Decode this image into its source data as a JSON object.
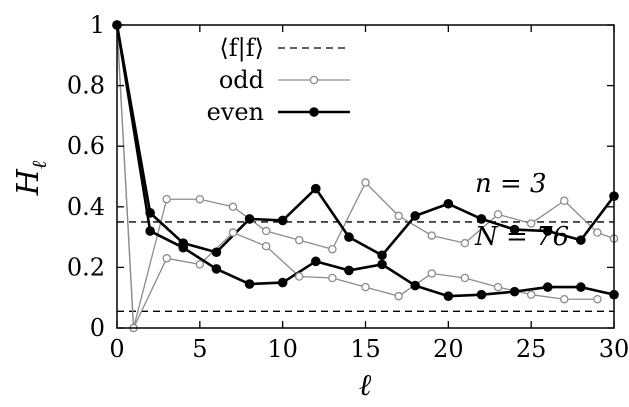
{
  "chart_data": {
    "type": "line",
    "xlabel": "ℓ",
    "ylabel": "H",
    "ylabel_sub": "ℓ",
    "xlim": [
      0,
      30
    ],
    "ylim": [
      0,
      1
    ],
    "xticks": [
      0,
      5,
      10,
      15,
      20,
      25,
      30
    ],
    "xtick_labels": [
      "0",
      "5",
      "10",
      "15",
      "20",
      "25",
      "30"
    ],
    "yticks": [
      0,
      0.2,
      0.4,
      0.6,
      0.8,
      1
    ],
    "ytick_labels": [
      "0",
      "0.2",
      "0.4",
      "0.6",
      "0.8",
      "1"
    ],
    "grid": false,
    "legend_position": "top-center",
    "legend": [
      {
        "label": "⟨f|f⟩",
        "style": "dashed"
      },
      {
        "label": "odd",
        "style": "gray-open-circles"
      },
      {
        "label": "even",
        "style": "black-filled-circles"
      }
    ],
    "reference_lines": [
      {
        "y": 0.35,
        "style": "dashed"
      },
      {
        "y": 0.055,
        "style": "dashed"
      }
    ],
    "annotations": [
      {
        "name": "n",
        "text": "n = 3"
      },
      {
        "name": "N",
        "text": "N = 76"
      }
    ],
    "series": [
      {
        "name": "odd",
        "group": "n=3",
        "color": "#8c8c8c",
        "marker": "open-circle",
        "x": [
          0,
          1,
          3,
          5,
          7,
          9,
          11,
          13,
          15,
          17,
          19,
          21,
          23,
          25,
          27,
          29,
          30
        ],
        "y": [
          1.0,
          0.0,
          0.425,
          0.425,
          0.4,
          0.32,
          0.29,
          0.26,
          0.48,
          0.37,
          0.305,
          0.28,
          0.375,
          0.345,
          0.42,
          0.315,
          0.295
        ]
      },
      {
        "name": "odd",
        "group": "N=76",
        "color": "#8c8c8c",
        "marker": "open-circle",
        "x": [
          0,
          1,
          3,
          5,
          7,
          9,
          11,
          13,
          15,
          17,
          19,
          21,
          23,
          25,
          27,
          29
        ],
        "y": [
          1.0,
          0.0,
          0.23,
          0.21,
          0.315,
          0.27,
          0.17,
          0.165,
          0.135,
          0.105,
          0.18,
          0.165,
          0.135,
          0.11,
          0.095,
          0.095
        ]
      },
      {
        "name": "even",
        "group": "n=3",
        "color": "#000000",
        "marker": "filled-circle",
        "x": [
          0,
          2,
          4,
          6,
          8,
          10,
          12,
          14,
          16,
          18,
          20,
          22,
          24,
          26,
          28,
          30
        ],
        "y": [
          1.0,
          0.38,
          0.28,
          0.25,
          0.36,
          0.355,
          0.46,
          0.3,
          0.24,
          0.37,
          0.41,
          0.36,
          0.325,
          0.32,
          0.29,
          0.435
        ]
      },
      {
        "name": "even",
        "group": "N=76",
        "color": "#000000",
        "marker": "filled-circle",
        "x": [
          0,
          2,
          4,
          6,
          8,
          10,
          12,
          14,
          16,
          18,
          20,
          22,
          24,
          26,
          28,
          30
        ],
        "y": [
          1.0,
          0.32,
          0.265,
          0.195,
          0.145,
          0.15,
          0.22,
          0.19,
          0.21,
          0.14,
          0.105,
          0.11,
          0.12,
          0.135,
          0.135,
          0.11
        ]
      }
    ]
  }
}
